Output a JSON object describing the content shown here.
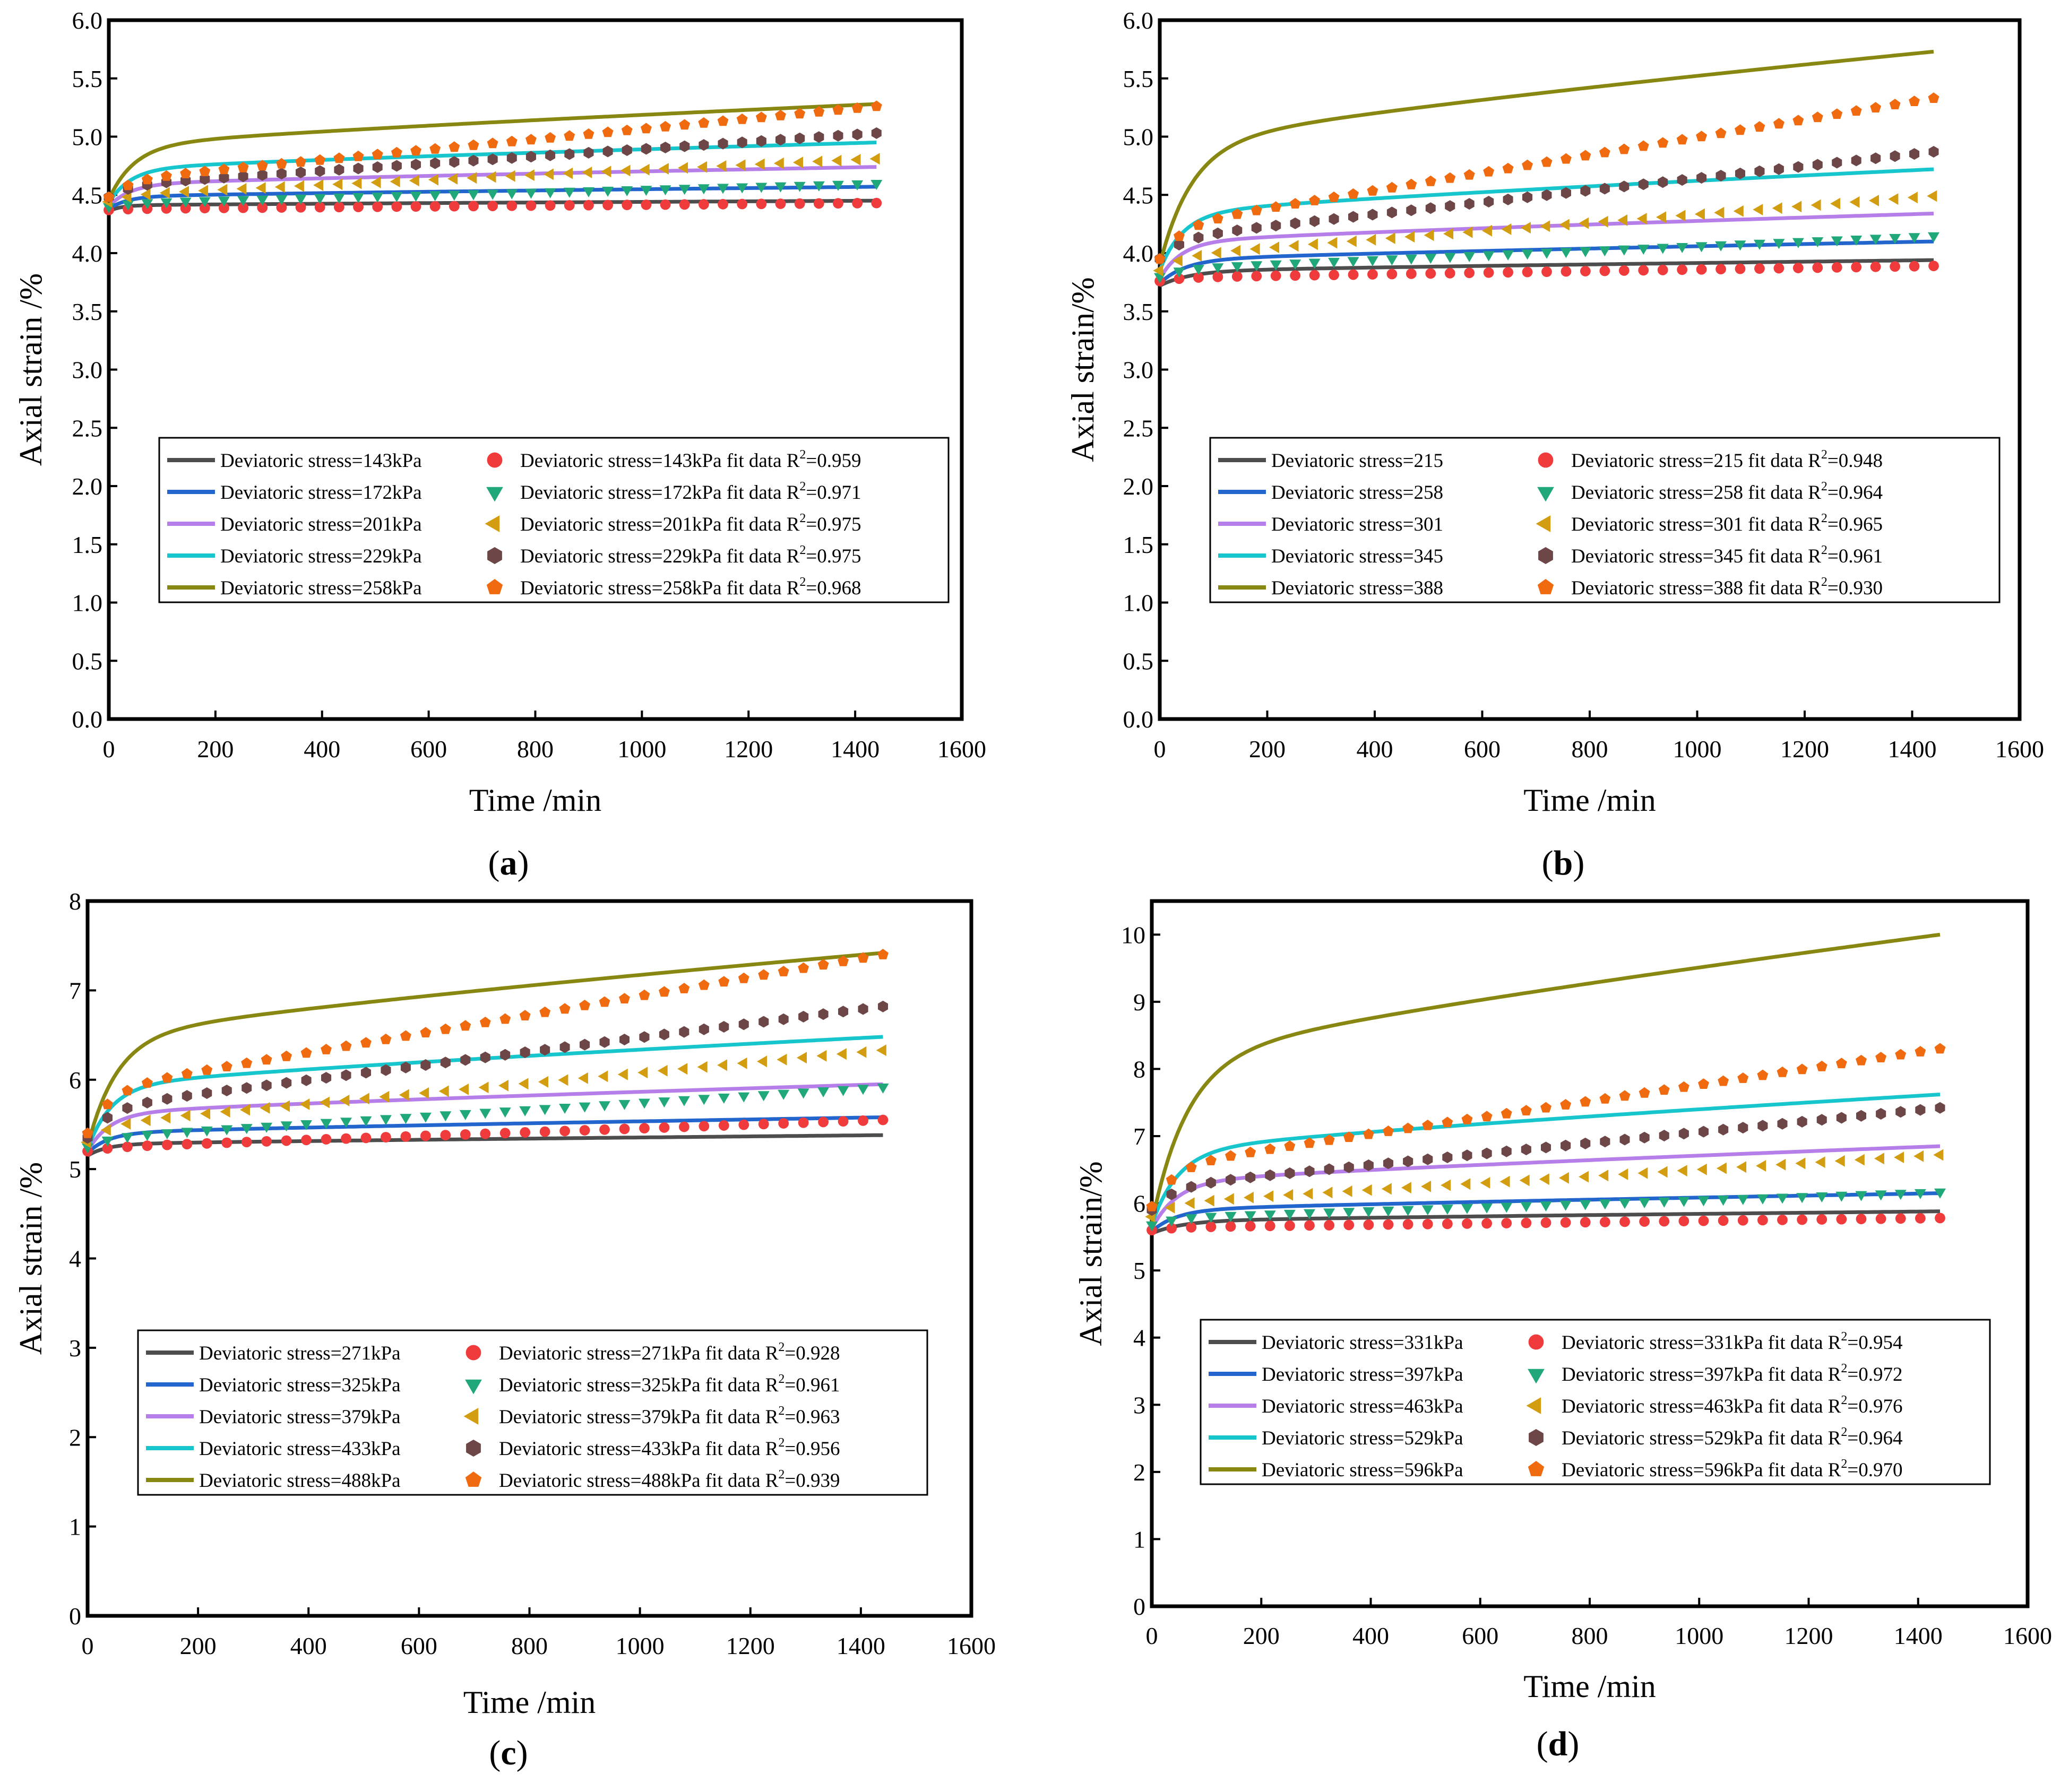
{
  "figure": {
    "panels": [
      {
        "id": "a",
        "label": "(a)",
        "label_parts": [
          "(",
          "a",
          ")"
        ]
      },
      {
        "id": "b",
        "label": "(b)",
        "label_parts": [
          "(",
          "b",
          ")"
        ]
      },
      {
        "id": "c",
        "label": "(c)",
        "label_parts": [
          "(",
          "c",
          ")"
        ]
      },
      {
        "id": "d",
        "label": "(d)",
        "label_parts": [
          "(",
          "d",
          ")"
        ]
      }
    ],
    "colors": {
      "s1_line": "#4d4d4d",
      "s1_marker": "#ef3b3b",
      "s2_line": "#2265cc",
      "s2_marker": "#20a87a",
      "s3_line": "#b57ee8",
      "s3_marker": "#d39d12",
      "s4_line": "#16c6cc",
      "s4_marker": "#6d4747",
      "s5_line": "#878712",
      "s5_marker": "#f06a10"
    },
    "marker_shapes": [
      "circle",
      "triangle-down",
      "triangle-left",
      "hexagon",
      "pentagon"
    ]
  },
  "chart_data": [
    {
      "panel": "a",
      "type": "line",
      "xlabel": "Time /min",
      "ylabel": "Axial strain /%",
      "xlim": [
        0,
        1600
      ],
      "ylim": [
        0,
        6
      ],
      "xticks": [
        "0",
        "200",
        "400",
        "600",
        "800",
        "1000",
        "1200",
        "1400",
        "1600"
      ],
      "yticks": [
        "0.0",
        "0.5",
        "1.0",
        "1.5",
        "2.0",
        "2.5",
        "3.0",
        "3.5",
        "4.0",
        "4.5",
        "5.0",
        "5.5",
        "6.0"
      ],
      "grid": false,
      "legend_position": "lower-middle",
      "x": [
        0,
        1440
      ],
      "series": [
        {
          "name": "Deviatoric stress=143kPa",
          "kind": "line",
          "start": 4.36,
          "end": 4.45,
          "shape": 0.9
        },
        {
          "name": "Deviatoric stress=172kPa",
          "kind": "line",
          "start": 4.38,
          "end": 4.57,
          "shape": 1.4
        },
        {
          "name": "Deviatoric stress=201kPa",
          "kind": "line",
          "start": 4.4,
          "end": 4.74,
          "shape": 1.6
        },
        {
          "name": "Deviatoric stress=229kPa",
          "kind": "line",
          "start": 4.43,
          "end": 4.95,
          "shape": 1.6
        },
        {
          "name": "Deviatoric stress=258kPa",
          "kind": "line",
          "start": 4.46,
          "end": 5.28,
          "shape": 1.9
        },
        {
          "name": "Deviatoric stress=143kPa fit data R",
          "r2": "=0.959",
          "kind": "fit",
          "start": 4.37,
          "end": 4.43,
          "shape": 0.5
        },
        {
          "name": "Deviatoric stress=172kPa fit data R",
          "r2": "=0.971",
          "kind": "fit",
          "start": 4.4,
          "end": 4.6,
          "shape": 0.4
        },
        {
          "name": "Deviatoric stress=201kPa fit data R",
          "r2": "=0.975",
          "kind": "fit",
          "start": 4.44,
          "end": 4.81,
          "shape": 0.4
        },
        {
          "name": "Deviatoric stress=229kPa fit data R",
          "r2": "=0.975",
          "kind": "fit",
          "start": 4.48,
          "end": 5.03,
          "shape": 0.55
        },
        {
          "name": "Deviatoric stress=258kPa fit data R",
          "r2": "=0.968",
          "kind": "fit",
          "start": 4.48,
          "end": 5.26,
          "shape": 0.55
        }
      ]
    },
    {
      "panel": "b",
      "type": "line",
      "xlabel": "Time /min",
      "ylabel": "Axial strain/%",
      "xlim": [
        0,
        1600
      ],
      "ylim": [
        0,
        6
      ],
      "xticks": [
        "0",
        "200",
        "400",
        "600",
        "800",
        "1000",
        "1200",
        "1400",
        "1600"
      ],
      "yticks": [
        "0.0",
        "0.5",
        "1.0",
        "1.5",
        "2.0",
        "2.5",
        "3.0",
        "3.5",
        "4.0",
        "4.5",
        "5.0",
        "5.5",
        "6.0"
      ],
      "grid": false,
      "legend_position": "lower-middle",
      "x": [
        0,
        1440
      ],
      "series": [
        {
          "name": "Deviatoric stress=215",
          "kind": "line",
          "start": 3.72,
          "end": 3.94,
          "shape": 2.2
        },
        {
          "name": "Deviatoric stress=258",
          "kind": "line",
          "start": 3.74,
          "end": 4.1,
          "shape": 1.9
        },
        {
          "name": "Deviatoric stress=301",
          "kind": "line",
          "start": 3.78,
          "end": 4.34,
          "shape": 1.6
        },
        {
          "name": "Deviatoric stress=345",
          "kind": "line",
          "start": 3.85,
          "end": 4.72,
          "shape": 1.7
        },
        {
          "name": "Deviatoric stress=388",
          "kind": "line",
          "start": 3.9,
          "end": 5.73,
          "shape": 2.4
        },
        {
          "name": "Deviatoric stress=215 fit data R",
          "r2": "=0.948",
          "kind": "fit",
          "start": 3.76,
          "end": 3.89,
          "shape": 1.0
        },
        {
          "name": "Deviatoric stress=258 fit data R",
          "r2": "=0.964",
          "kind": "fit",
          "start": 3.8,
          "end": 4.15,
          "shape": 0.6
        },
        {
          "name": "Deviatoric stress=301 fit data R",
          "r2": "=0.965",
          "kind": "fit",
          "start": 3.85,
          "end": 4.49,
          "shape": 0.6
        },
        {
          "name": "Deviatoric stress=345 fit data R",
          "r2": "=0.961",
          "kind": "fit",
          "start": 3.95,
          "end": 4.87,
          "shape": 0.6
        },
        {
          "name": "Deviatoric stress=388 fit data R",
          "r2": "=0.930",
          "kind": "fit",
          "start": 3.95,
          "end": 5.33,
          "shape": 0.7
        }
      ]
    },
    {
      "panel": "c",
      "type": "line",
      "xlabel": "Time /min",
      "ylabel": "Axial strain /%",
      "xlim": [
        0,
        1600
      ],
      "ylim": [
        0,
        8
      ],
      "xticks": [
        "0",
        "200",
        "400",
        "600",
        "800",
        "1000",
        "1200",
        "1400",
        "1600"
      ],
      "yticks": [
        "0",
        "1",
        "2",
        "3",
        "4",
        "5",
        "6",
        "7",
        "8"
      ],
      "grid": false,
      "legend_position": "lower-middle",
      "x": [
        0,
        1440
      ],
      "series": [
        {
          "name": "Deviatoric stress=271kPa",
          "kind": "line",
          "start": 5.15,
          "end": 5.38,
          "shape": 1.4
        },
        {
          "name": "Deviatoric stress=325kPa",
          "kind": "line",
          "start": 5.18,
          "end": 5.58,
          "shape": 1.5
        },
        {
          "name": "Deviatoric stress=379kPa",
          "kind": "line",
          "start": 5.2,
          "end": 5.95,
          "shape": 1.6
        },
        {
          "name": "Deviatoric stress=433kPa",
          "kind": "line",
          "start": 5.22,
          "end": 6.48,
          "shape": 1.7
        },
        {
          "name": "Deviatoric stress=488kPa",
          "kind": "line",
          "start": 5.25,
          "end": 7.42,
          "shape": 2.1
        },
        {
          "name": "Deviatoric stress=271kPa fit data R",
          "r2": "=0.928",
          "kind": "fit",
          "start": 5.2,
          "end": 5.55,
          "shape": 0.25
        },
        {
          "name": "Deviatoric stress=325kPa fit data R",
          "r2": "=0.961",
          "kind": "fit",
          "start": 5.25,
          "end": 5.92,
          "shape": 0.4
        },
        {
          "name": "Deviatoric stress=379kPa fit data R",
          "r2": "=0.963",
          "kind": "fit",
          "start": 5.3,
          "end": 6.33,
          "shape": 0.6
        },
        {
          "name": "Deviatoric stress=433kPa fit data R",
          "r2": "=0.956",
          "kind": "fit",
          "start": 5.35,
          "end": 6.82,
          "shape": 0.9
        },
        {
          "name": "Deviatoric stress=488kPa fit data R",
          "r2": "=0.939",
          "kind": "fit",
          "start": 5.4,
          "end": 7.4,
          "shape": 1.1
        }
      ]
    },
    {
      "panel": "d",
      "type": "line",
      "xlabel": "Time /min",
      "ylabel": "Axial strain/%",
      "xlim": [
        0,
        1600
      ],
      "ylim": [
        0,
        10.5
      ],
      "xticks": [
        "0",
        "200",
        "400",
        "600",
        "800",
        "1000",
        "1200",
        "1400",
        "1600"
      ],
      "yticks": [
        "0",
        "1",
        "2",
        "3",
        "4",
        "5",
        "6",
        "7",
        "8",
        "9",
        "10"
      ],
      "grid": false,
      "legend_position": "lower-middle",
      "x": [
        0,
        1440
      ],
      "series": [
        {
          "name": "Deviatoric stress=331kPa",
          "kind": "line",
          "start": 5.55,
          "end": 5.88,
          "shape": 2.2
        },
        {
          "name": "Deviatoric stress=397kPa",
          "kind": "line",
          "start": 5.58,
          "end": 6.15,
          "shape": 1.8
        },
        {
          "name": "Deviatoric stress=463kPa",
          "kind": "line",
          "start": 5.62,
          "end": 6.85,
          "shape": 1.8
        },
        {
          "name": "Deviatoric stress=529kPa",
          "kind": "line",
          "start": 5.68,
          "end": 7.62,
          "shape": 1.9
        },
        {
          "name": "Deviatoric stress=596kPa",
          "kind": "line",
          "start": 5.7,
          "end": 10.0,
          "shape": 2.6
        },
        {
          "name": "Deviatoric stress=331kPa fit data R",
          "r2": "=0.954",
          "kind": "fit",
          "start": 5.6,
          "end": 5.78,
          "shape": 1.0
        },
        {
          "name": "Deviatoric stress=397kPa fit data R",
          "r2": "=0.972",
          "kind": "fit",
          "start": 5.68,
          "end": 6.17,
          "shape": 0.8
        },
        {
          "name": "Deviatoric stress=463kPa fit data R",
          "r2": "=0.976",
          "kind": "fit",
          "start": 5.8,
          "end": 6.72,
          "shape": 0.8
        },
        {
          "name": "Deviatoric stress=529kPa fit data R",
          "r2": "=0.964",
          "kind": "fit",
          "start": 5.9,
          "end": 7.42,
          "shape": 0.9
        },
        {
          "name": "Deviatoric stress=596kPa fit data R",
          "r2": "=0.970",
          "kind": "fit",
          "start": 5.95,
          "end": 8.3,
          "shape": 1.3
        }
      ]
    }
  ]
}
